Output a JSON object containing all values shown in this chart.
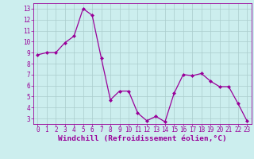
{
  "x": [
    0,
    1,
    2,
    3,
    4,
    5,
    6,
    7,
    8,
    9,
    10,
    11,
    12,
    13,
    14,
    15,
    16,
    17,
    18,
    19,
    20,
    21,
    22,
    23
  ],
  "y": [
    8.8,
    9.0,
    9.0,
    9.9,
    10.5,
    13.0,
    12.4,
    8.5,
    4.7,
    5.5,
    5.5,
    3.5,
    2.8,
    3.2,
    2.7,
    5.3,
    7.0,
    6.9,
    7.1,
    6.4,
    5.9,
    5.9,
    4.4,
    2.8
  ],
  "line_color": "#990099",
  "marker": "D",
  "marker_size": 2.0,
  "bg_color": "#cceeee",
  "grid_color": "#aacccc",
  "ylim": [
    2.5,
    13.5
  ],
  "yticks": [
    3,
    4,
    5,
    6,
    7,
    8,
    9,
    10,
    11,
    12,
    13
  ],
  "xlim": [
    -0.5,
    23.5
  ],
  "xticks": [
    0,
    1,
    2,
    3,
    4,
    5,
    6,
    7,
    8,
    9,
    10,
    11,
    12,
    13,
    14,
    15,
    16,
    17,
    18,
    19,
    20,
    21,
    22,
    23
  ],
  "xlabel": "Windchill (Refroidissement éolien,°C)",
  "xlabel_color": "#990099",
  "tick_color": "#990099",
  "spine_color": "#990099",
  "tick_fontsize": 5.5,
  "xlabel_fontsize": 6.8
}
